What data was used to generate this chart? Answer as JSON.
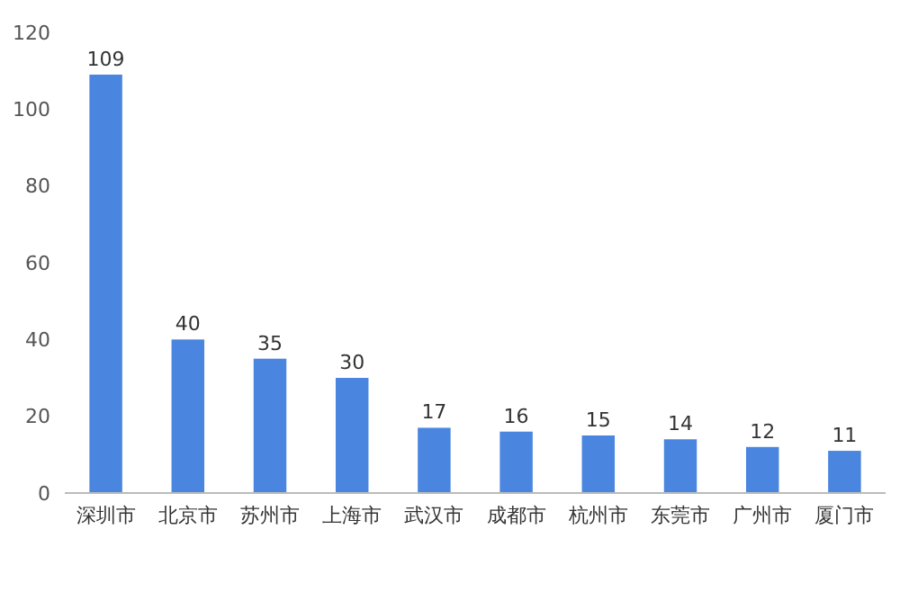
{
  "chart_data": {
    "type": "bar",
    "categories": [
      "深圳市",
      "北京市",
      "苏州市",
      "上海市",
      "武汉市",
      "成都市",
      "杭州市",
      "东莞市",
      "广州市",
      "厦门市"
    ],
    "values": [
      109,
      40,
      35,
      30,
      17,
      16,
      15,
      14,
      12,
      11
    ],
    "color": "#4a86e0",
    "ylim": [
      0,
      120
    ],
    "yticks": [
      0,
      20,
      40,
      60,
      80,
      100,
      120
    ],
    "grid": false,
    "data_labels": true
  }
}
